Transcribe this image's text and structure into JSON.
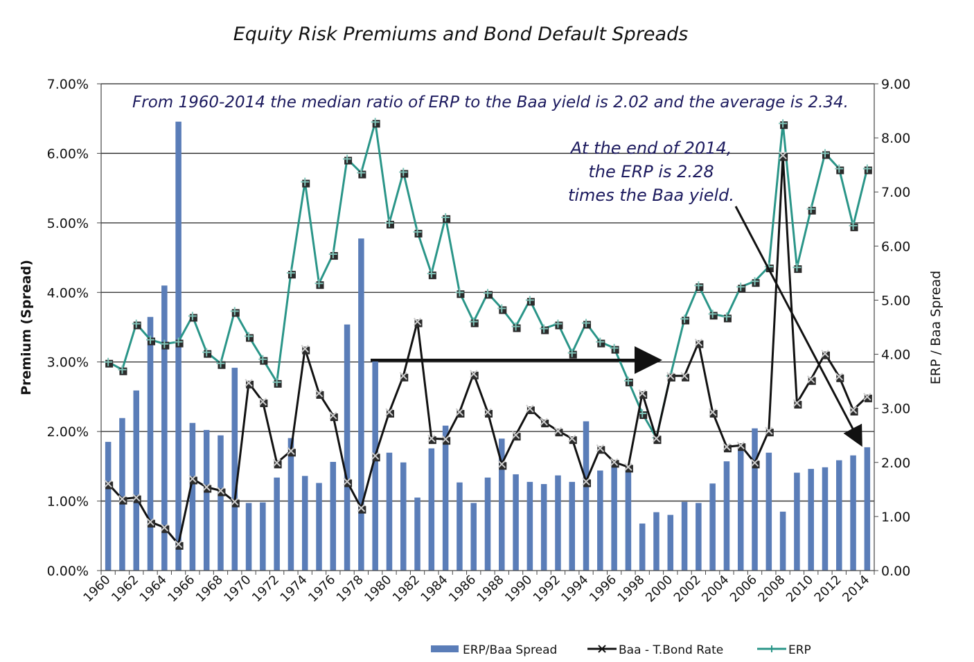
{
  "chart_data": {
    "type": "bar",
    "title": "Equity Risk Premiums  and Bond Default Spreads",
    "ylabel_left": "Premium (Spread)",
    "ylabel_right": "ERP / Baa Spread",
    "ylim_left": [
      0,
      7
    ],
    "ylim_right": [
      0,
      9
    ],
    "yticks_left": [
      "0.00%",
      "1.00%",
      "2.00%",
      "3.00%",
      "4.00%",
      "5.00%",
      "6.00%",
      "7.00%"
    ],
    "yticks_right": [
      "0.00",
      "1.00",
      "2.00",
      "3.00",
      "4.00",
      "5.00",
      "6.00",
      "7.00",
      "8.00",
      "9.00"
    ],
    "grid": true,
    "legend_position": "bottom",
    "years": [
      1960,
      1961,
      1962,
      1963,
      1964,
      1965,
      1966,
      1967,
      1968,
      1969,
      1970,
      1971,
      1972,
      1973,
      1974,
      1975,
      1976,
      1977,
      1978,
      1979,
      1980,
      1981,
      1982,
      1983,
      1984,
      1985,
      1986,
      1987,
      1988,
      1989,
      1990,
      1991,
      1992,
      1993,
      1994,
      1995,
      1996,
      1997,
      1998,
      1999,
      2000,
      2001,
      2002,
      2003,
      2004,
      2005,
      2006,
      2007,
      2008,
      2009,
      2010,
      2011,
      2012,
      2013,
      2014
    ],
    "xtick_labels": [
      "1960",
      "1962",
      "1964",
      "1966",
      "1968",
      "1970",
      "1972",
      "1974",
      "1976",
      "1978",
      "1980",
      "1982",
      "1984",
      "1986",
      "1988",
      "1990",
      "1992",
      "1994",
      "1996",
      "1998",
      "2000",
      "2002",
      "2004",
      "2006",
      "2008",
      "2010",
      "2012",
      "2014"
    ],
    "series": [
      {
        "name": "ERP/Baa Spread",
        "type": "bar",
        "axis": "right",
        "color": "#5a7db8",
        "values": [
          2.38,
          2.82,
          3.33,
          4.69,
          5.27,
          8.3,
          2.73,
          2.6,
          2.5,
          3.75,
          1.25,
          1.26,
          1.72,
          2.45,
          1.75,
          1.62,
          2.01,
          4.55,
          6.14,
          3.9,
          2.18,
          2.0,
          1.35,
          2.26,
          2.68,
          1.63,
          1.25,
          1.72,
          2.44,
          1.78,
          1.64,
          1.6,
          1.76,
          1.64,
          2.76,
          1.85,
          2.01,
          1.87,
          0.87,
          1.08,
          1.03,
          1.27,
          1.25,
          1.61,
          2.02,
          2.26,
          2.63,
          2.18,
          1.09,
          1.81,
          1.88,
          1.91,
          2.04,
          2.13,
          2.28
        ]
      },
      {
        "name": "Baa - T.Bond Rate",
        "type": "line",
        "axis": "left",
        "color": "#111111",
        "values": [
          1.25,
          1.03,
          1.05,
          0.7,
          0.62,
          0.38,
          1.32,
          1.2,
          1.15,
          0.99,
          2.7,
          2.43,
          1.55,
          1.72,
          3.19,
          2.55,
          2.23,
          1.28,
          0.9,
          1.65,
          2.28,
          2.8,
          3.58,
          1.9,
          1.89,
          2.28,
          2.83,
          2.28,
          1.53,
          1.95,
          2.33,
          2.14,
          2.01,
          1.9,
          1.28,
          1.76,
          1.56,
          1.49,
          2.55,
          1.9,
          2.8,
          2.8,
          3.28,
          2.28,
          1.78,
          1.8,
          1.55,
          2.01,
          5.97,
          2.41,
          2.75,
          3.12,
          2.79,
          2.31,
          2.5
        ]
      },
      {
        "name": "ERP",
        "type": "line",
        "axis": "left",
        "color": "#2a9588",
        "values": [
          3.0,
          2.89,
          3.55,
          3.32,
          3.26,
          3.29,
          3.66,
          3.14,
          2.98,
          3.73,
          3.37,
          3.04,
          2.71,
          4.28,
          5.59,
          4.13,
          4.55,
          5.92,
          5.72,
          6.45,
          5.0,
          5.73,
          4.87,
          4.27,
          5.08,
          4.0,
          3.58,
          3.99,
          3.77,
          3.51,
          3.89,
          3.48,
          3.55,
          3.13,
          3.56,
          3.29,
          3.2,
          2.73,
          2.26,
          1.91,
          2.8,
          3.62,
          4.1,
          3.69,
          3.65,
          4.08,
          4.16,
          4.37,
          6.43,
          4.36,
          5.2,
          6.0,
          5.78,
          4.96,
          5.78
        ]
      }
    ],
    "annotations": {
      "note": "From 1960-2014 the median ratio of ERP to the Baa yield is 2.02 and the average is 2.34.",
      "callout_lines": [
        "At the end of 2014,",
        "the ERP is 2.28",
        "times the Baa yield."
      ]
    }
  },
  "colors": {
    "bar": "#5a7db8",
    "baa_line": "#111111",
    "erp_line": "#2a9588",
    "marker_shadow": "#2b2b2b",
    "note_text": "#1c1a5e"
  }
}
